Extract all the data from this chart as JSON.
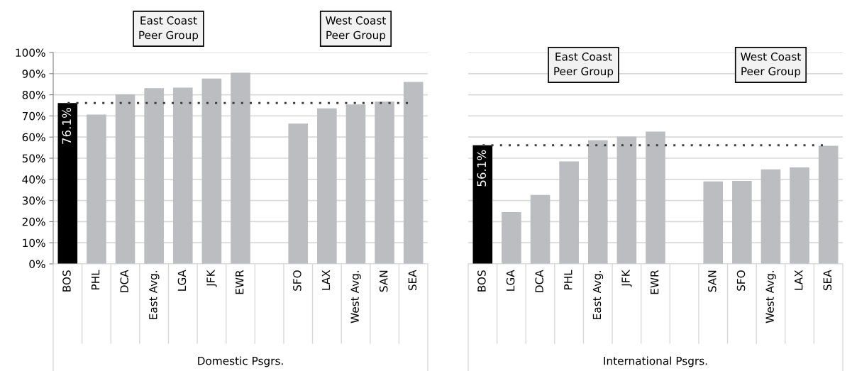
{
  "chart_data": [
    {
      "type": "bar",
      "xlabel": "Domestic Psgrs.",
      "annotations": [
        "East Coast\nPeer Group",
        "West Coast\nPeer Group"
      ],
      "categories": [
        "BOS",
        "PHL",
        "DCA",
        "East Avg.",
        "LGA",
        "JFK",
        "EWR",
        null,
        "SFO",
        "LAX",
        "West Avg.",
        "SAN",
        "SEA"
      ],
      "values": [
        76.1,
        70.6,
        80.2,
        83.1,
        83.4,
        87.7,
        90.4,
        null,
        66.4,
        73.6,
        75.4,
        76.8,
        86.1
      ],
      "colors": [
        "#000000",
        "#bcbdc0",
        "#bcbdc0",
        "#bcbdc0",
        "#bcbdc0",
        "#bcbdc0",
        "#bcbdc0",
        "#bcbdc0",
        "#bcbdc0",
        "#bcbdc0",
        "#bcbdc0",
        "#bcbdc0",
        "#bcbdc0"
      ],
      "value_labels": [
        "76.1%",
        null,
        null,
        null,
        null,
        null,
        null,
        null,
        null,
        null,
        null,
        null,
        null
      ],
      "ylim": [
        0,
        100
      ],
      "yticks": [
        {
          "value": 0,
          "label": "0%"
        },
        {
          "value": 10,
          "label": "10%"
        },
        {
          "value": 20,
          "label": "20%"
        },
        {
          "value": 30,
          "label": "30%"
        },
        {
          "value": 40,
          "label": "40%"
        },
        {
          "value": 50,
          "label": "50%"
        },
        {
          "value": 60,
          "label": "60%"
        },
        {
          "value": 70,
          "label": "70%"
        },
        {
          "value": 80,
          "label": "80%"
        },
        {
          "value": 90,
          "label": "90%"
        },
        {
          "value": 100,
          "label": "100%"
        }
      ],
      "ref_lines": [
        {
          "axis": "y",
          "value": 76.1,
          "color": "#404040",
          "line_style": "dotted"
        }
      ],
      "grid": "y"
    },
    {
      "type": "bar",
      "xlabel": "International Psgrs.",
      "annotations": [
        "East Coast\nPeer Group",
        "West Coast\nPeer Group"
      ],
      "categories": [
        "BOS",
        "LGA",
        "DCA",
        "PHL",
        "East Avg.",
        "JFK",
        "EWR",
        null,
        "SAN",
        "SFO",
        "West Avg.",
        "LAX",
        "SEA"
      ],
      "values": [
        56.1,
        24.5,
        32.6,
        48.5,
        58.5,
        60.2,
        62.6,
        null,
        39.0,
        39.3,
        44.7,
        45.6,
        55.9
      ],
      "colors": [
        "#000000",
        "#bcbdc0",
        "#bcbdc0",
        "#bcbdc0",
        "#bcbdc0",
        "#bcbdc0",
        "#bcbdc0",
        "#bcbdc0",
        "#bcbdc0",
        "#bcbdc0",
        "#bcbdc0",
        "#bcbdc0",
        "#bcbdc0"
      ],
      "value_labels": [
        "56.1%",
        null,
        null,
        null,
        null,
        null,
        null,
        null,
        null,
        null,
        null,
        null,
        null
      ],
      "ylim": [
        0,
        100
      ],
      "yticks": [
        {
          "value": 0,
          "label": null
        },
        {
          "value": 10,
          "label": null
        },
        {
          "value": 20,
          "label": null
        },
        {
          "value": 30,
          "label": null
        },
        {
          "value": 40,
          "label": null
        },
        {
          "value": 50,
          "label": null
        },
        {
          "value": 60,
          "label": null
        },
        {
          "value": 70,
          "label": null
        },
        {
          "value": 80,
          "label": null
        },
        {
          "value": 90,
          "label": null
        },
        {
          "value": 100,
          "label": null
        }
      ],
      "tick_labels": "x",
      "ref_lines": [
        {
          "axis": "y",
          "value": 56.1,
          "color": "#404040",
          "line_style": "dotted"
        }
      ],
      "grid": "y"
    }
  ]
}
